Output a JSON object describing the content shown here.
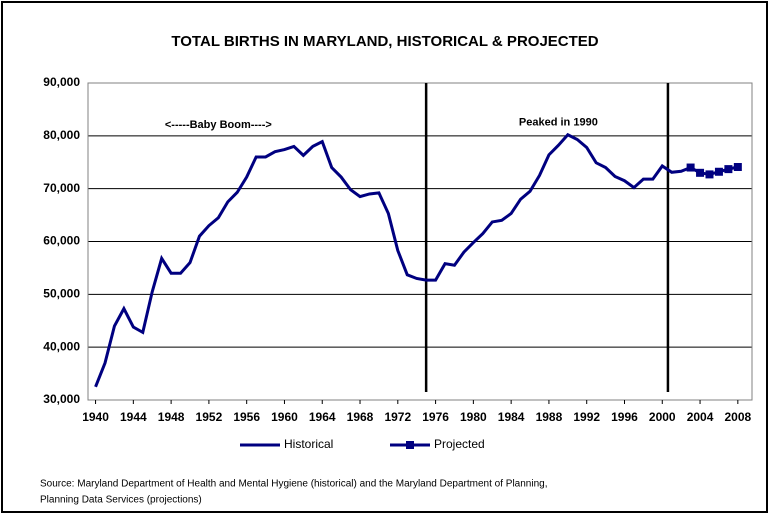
{
  "chart_data": {
    "type": "line",
    "title": "TOTAL BIRTHS IN MARYLAND, HISTORICAL & PROJECTED",
    "annotations": [
      {
        "text": "<-----Baby Boom---->",
        "x": 1953,
        "y": 82000
      },
      {
        "text": "Peaked in 1990",
        "x": 1989,
        "y": 82500
      }
    ],
    "vlines": [
      1975,
      2000.6
    ],
    "series": [
      {
        "name": "Historical",
        "color": "#000080",
        "marker": false,
        "x": [
          1940,
          1941,
          1942,
          1943,
          1944,
          1945,
          1946,
          1947,
          1948,
          1949,
          1950,
          1951,
          1952,
          1953,
          1954,
          1955,
          1956,
          1957,
          1958,
          1959,
          1960,
          1961,
          1962,
          1963,
          1964,
          1965,
          1966,
          1967,
          1968,
          1969,
          1970,
          1971,
          1972,
          1973,
          1974,
          1975,
          1976,
          1977,
          1978,
          1979,
          1980,
          1981,
          1982,
          1983,
          1984,
          1985,
          1986,
          1987,
          1988,
          1989,
          1990,
          1991,
          1992,
          1993,
          1994,
          1995,
          1996,
          1997,
          1998,
          1999,
          2000,
          2001,
          2002,
          2003
        ],
        "values": [
          32500,
          37000,
          44000,
          47300,
          43800,
          42800,
          50500,
          56800,
          54000,
          54000,
          56000,
          61000,
          63000,
          64500,
          67500,
          69300,
          72200,
          76000,
          76000,
          77000,
          77400,
          78000,
          76300,
          78000,
          78900,
          74000,
          72200,
          69800,
          68500,
          69000,
          69200,
          65300,
          58300,
          53700,
          53000,
          52700,
          52700,
          55800,
          55500,
          58000,
          59800,
          61500,
          63700,
          64000,
          65300,
          68000,
          69500,
          72500,
          76400,
          78200,
          80200,
          79300,
          77800,
          74900,
          74000,
          72300,
          71500,
          70200,
          71800,
          71800,
          74300,
          73100,
          73300,
          74000
        ]
      },
      {
        "name": "Projected",
        "color": "#000080",
        "marker": true,
        "x": [
          2003,
          2004,
          2005,
          2006,
          2007,
          2008
        ],
        "values": [
          74000,
          73000,
          72700,
          73200,
          73700,
          74100
        ]
      }
    ],
    "xlim": [
      1939.2,
      2009.5
    ],
    "xticks": [
      1940,
      1944,
      1948,
      1952,
      1956,
      1960,
      1964,
      1968,
      1972,
      1976,
      1980,
      1984,
      1988,
      1992,
      1996,
      2000,
      2004,
      2008
    ],
    "ylim": [
      30000,
      90000
    ],
    "yticks": [
      {
        "value": 30000,
        "label": "30,000"
      },
      {
        "value": 40000,
        "label": "40,000"
      },
      {
        "value": 50000,
        "label": "50,000"
      },
      {
        "value": 60000,
        "label": "60,000"
      },
      {
        "value": 70000,
        "label": "70,000"
      },
      {
        "value": 80000,
        "label": "80,000"
      },
      {
        "value": 90000,
        "label": "90,000"
      }
    ],
    "grid": true,
    "legend": "bottom",
    "source": [
      "Source: Maryland Department of Health and Mental Hygiene (historical) and the Maryland Department of Planning,",
      "Planning Data Services (projections)"
    ]
  }
}
